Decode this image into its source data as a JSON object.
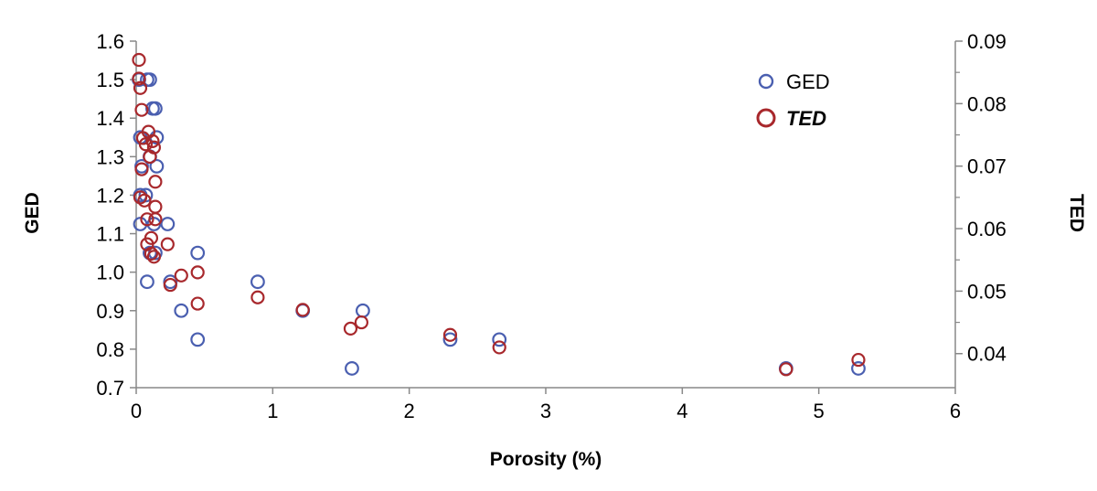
{
  "chart_data": {
    "type": "scatter",
    "xlabel": "Porosity (%)",
    "ylabel": "GED",
    "y2label": "TED",
    "xlim": [
      0,
      6
    ],
    "ylim": [
      0.7,
      1.6
    ],
    "y2lim": [
      0.03455,
      0.09
    ],
    "x_ticks": [
      "0",
      "1",
      "2",
      "3",
      "4",
      "5",
      "6"
    ],
    "y_ticks": [
      "0.7",
      "0.8",
      "0.9",
      "1.0",
      "1.1",
      "1.2",
      "1.3",
      "1.4",
      "1.5",
      "1.6"
    ],
    "y2_ticks": [
      "0.04",
      "0.05",
      "0.06",
      "0.07",
      "0.08",
      "0.09"
    ],
    "legend_position": "top-right",
    "series": [
      {
        "name": "GED",
        "axis": "left",
        "color": "#4a5fb0",
        "points": [
          {
            "x": 0.02,
            "y": 1.5
          },
          {
            "x": 0.08,
            "y": 1.5
          },
          {
            "x": 0.1,
            "y": 1.5
          },
          {
            "x": 0.12,
            "y": 1.425
          },
          {
            "x": 0.14,
            "y": 1.425
          },
          {
            "x": 0.03,
            "y": 1.35
          },
          {
            "x": 0.15,
            "y": 1.35
          },
          {
            "x": 0.1,
            "y": 1.3
          },
          {
            "x": 0.04,
            "y": 1.275
          },
          {
            "x": 0.15,
            "y": 1.275
          },
          {
            "x": 0.03,
            "y": 1.2
          },
          {
            "x": 0.07,
            "y": 1.2
          },
          {
            "x": 0.03,
            "y": 1.125
          },
          {
            "x": 0.13,
            "y": 1.125
          },
          {
            "x": 0.23,
            "y": 1.125
          },
          {
            "x": 0.1,
            "y": 1.05
          },
          {
            "x": 0.14,
            "y": 1.05
          },
          {
            "x": 0.45,
            "y": 1.05
          },
          {
            "x": 0.08,
            "y": 0.975
          },
          {
            "x": 0.25,
            "y": 0.975
          },
          {
            "x": 0.89,
            "y": 0.975
          },
          {
            "x": 0.33,
            "y": 0.9
          },
          {
            "x": 1.22,
            "y": 0.9
          },
          {
            "x": 1.66,
            "y": 0.9
          },
          {
            "x": 0.45,
            "y": 0.825
          },
          {
            "x": 2.3,
            "y": 0.825
          },
          {
            "x": 2.66,
            "y": 0.825
          },
          {
            "x": 1.58,
            "y": 0.75
          },
          {
            "x": 4.76,
            "y": 0.75
          },
          {
            "x": 5.29,
            "y": 0.75
          }
        ]
      },
      {
        "name": "TED",
        "axis": "right",
        "color": "#a8282c",
        "points": [
          {
            "x": 0.02,
            "y": 0.087
          },
          {
            "x": 0.02,
            "y": 0.084
          },
          {
            "x": 0.03,
            "y": 0.0825
          },
          {
            "x": 0.04,
            "y": 0.079
          },
          {
            "x": 0.09,
            "y": 0.0755
          },
          {
            "x": 0.05,
            "y": 0.0745
          },
          {
            "x": 0.12,
            "y": 0.074
          },
          {
            "x": 0.07,
            "y": 0.0735
          },
          {
            "x": 0.13,
            "y": 0.073
          },
          {
            "x": 0.1,
            "y": 0.0715
          },
          {
            "x": 0.04,
            "y": 0.0695
          },
          {
            "x": 0.14,
            "y": 0.0675
          },
          {
            "x": 0.03,
            "y": 0.065
          },
          {
            "x": 0.06,
            "y": 0.0645
          },
          {
            "x": 0.14,
            "y": 0.0635
          },
          {
            "x": 0.08,
            "y": 0.0615
          },
          {
            "x": 0.14,
            "y": 0.0615
          },
          {
            "x": 0.11,
            "y": 0.0585
          },
          {
            "x": 0.08,
            "y": 0.0575
          },
          {
            "x": 0.23,
            "y": 0.0575
          },
          {
            "x": 0.11,
            "y": 0.056
          },
          {
            "x": 0.13,
            "y": 0.0555
          },
          {
            "x": 0.33,
            "y": 0.0525
          },
          {
            "x": 0.45,
            "y": 0.053
          },
          {
            "x": 0.25,
            "y": 0.051
          },
          {
            "x": 0.89,
            "y": 0.049
          },
          {
            "x": 0.45,
            "y": 0.048
          },
          {
            "x": 1.22,
            "y": 0.047
          },
          {
            "x": 1.65,
            "y": 0.045
          },
          {
            "x": 1.57,
            "y": 0.044
          },
          {
            "x": 2.3,
            "y": 0.043
          },
          {
            "x": 2.66,
            "y": 0.041
          },
          {
            "x": 4.76,
            "y": 0.0375
          },
          {
            "x": 5.29,
            "y": 0.039
          }
        ]
      }
    ]
  }
}
